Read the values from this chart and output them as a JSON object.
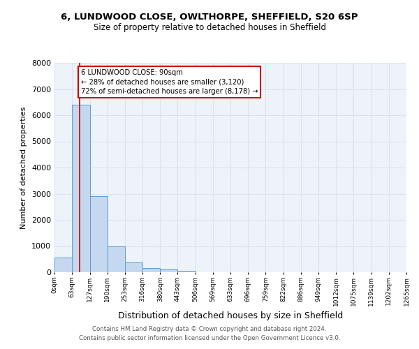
{
  "title1": "6, LUNDWOOD CLOSE, OWLTHORPE, SHEFFIELD, S20 6SP",
  "title2": "Size of property relative to detached houses in Sheffield",
  "xlabel": "Distribution of detached houses by size in Sheffield",
  "ylabel": "Number of detached properties",
  "bin_labels": [
    "0sqm",
    "63sqm",
    "127sqm",
    "190sqm",
    "253sqm",
    "316sqm",
    "380sqm",
    "443sqm",
    "506sqm",
    "569sqm",
    "633sqm",
    "696sqm",
    "759sqm",
    "822sqm",
    "886sqm",
    "949sqm",
    "1012sqm",
    "1075sqm",
    "1139sqm",
    "1202sqm",
    "1265sqm"
  ],
  "bin_edges": [
    0,
    63,
    127,
    190,
    253,
    316,
    380,
    443,
    506,
    569,
    633,
    696,
    759,
    822,
    886,
    949,
    1012,
    1075,
    1139,
    1202,
    1265
  ],
  "bar_heights": [
    560,
    6400,
    2900,
    1000,
    370,
    170,
    100,
    60,
    0,
    0,
    0,
    0,
    0,
    0,
    0,
    0,
    0,
    0,
    0,
    0
  ],
  "bar_color": "#c5d8f0",
  "bar_edge_color": "#5a9bd5",
  "vline_x": 90,
  "vline_color": "#cc0000",
  "ylim": [
    0,
    8000
  ],
  "yticks": [
    0,
    1000,
    2000,
    3000,
    4000,
    5000,
    6000,
    7000,
    8000
  ],
  "annotation_text": "6 LUNDWOOD CLOSE: 90sqm\n← 28% of detached houses are smaller (3,120)\n72% of semi-detached houses are larger (8,178) →",
  "annotation_box_color": "#ffffff",
  "annotation_box_edge_color": "#cc0000",
  "footer1": "Contains HM Land Registry data © Crown copyright and database right 2024.",
  "footer2": "Contains public sector information licensed under the Open Government Licence v3.0.",
  "grid_color": "#d8e4f0",
  "background_color": "#eef3fa"
}
